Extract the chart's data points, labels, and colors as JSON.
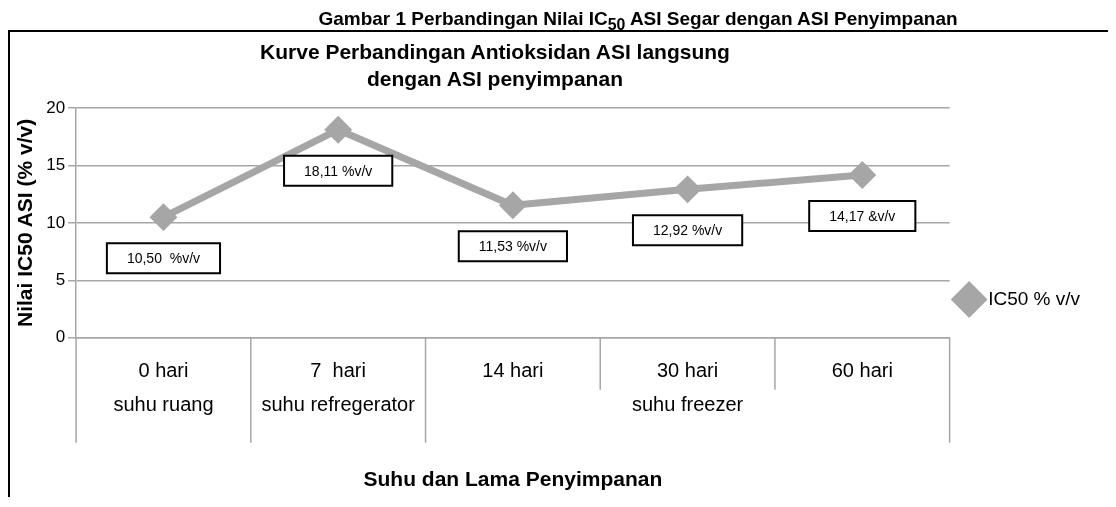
{
  "chart_data": {
    "type": "line",
    "title": "Kurve Perbandingan Antioksidan ASI langsung dengan ASI penyimpanan",
    "subtitle": "Gambar 1 Perbandingan Nilai IC$_{50}$ ASI Segar dengan ASI Penyimpanan",
    "xlabel": "Suhu dan Lama Penyimpanan",
    "ylabel": "Nilai IC50 ASI (% v/v)",
    "categories": [
      "0 hari",
      "7  hari",
      "14 hari",
      "30 hari",
      "60 hari"
    ],
    "series": [
      {
        "name": "IC50 % v/v",
        "color": "#a6a6a6",
        "values": [
          10.5,
          18.11,
          11.53,
          12.92,
          14.17
        ],
        "value_labels": [
          "10,50  %v/v",
          "18,11 %v/v",
          "11,53 %v/v",
          "12,92 %v/v",
          "14,17 &v/v"
        ]
      }
    ],
    "annotations": [
      "suhu ruang",
      "suhu refregerator",
      "suhu freezer"
    ],
    "ylim": [
      0,
      20
    ],
    "yticks": [
      0,
      5,
      10,
      15,
      20
    ],
    "grid": "y",
    "legend": "right",
    "marker": "diamond",
    "line_style": "solid"
  }
}
